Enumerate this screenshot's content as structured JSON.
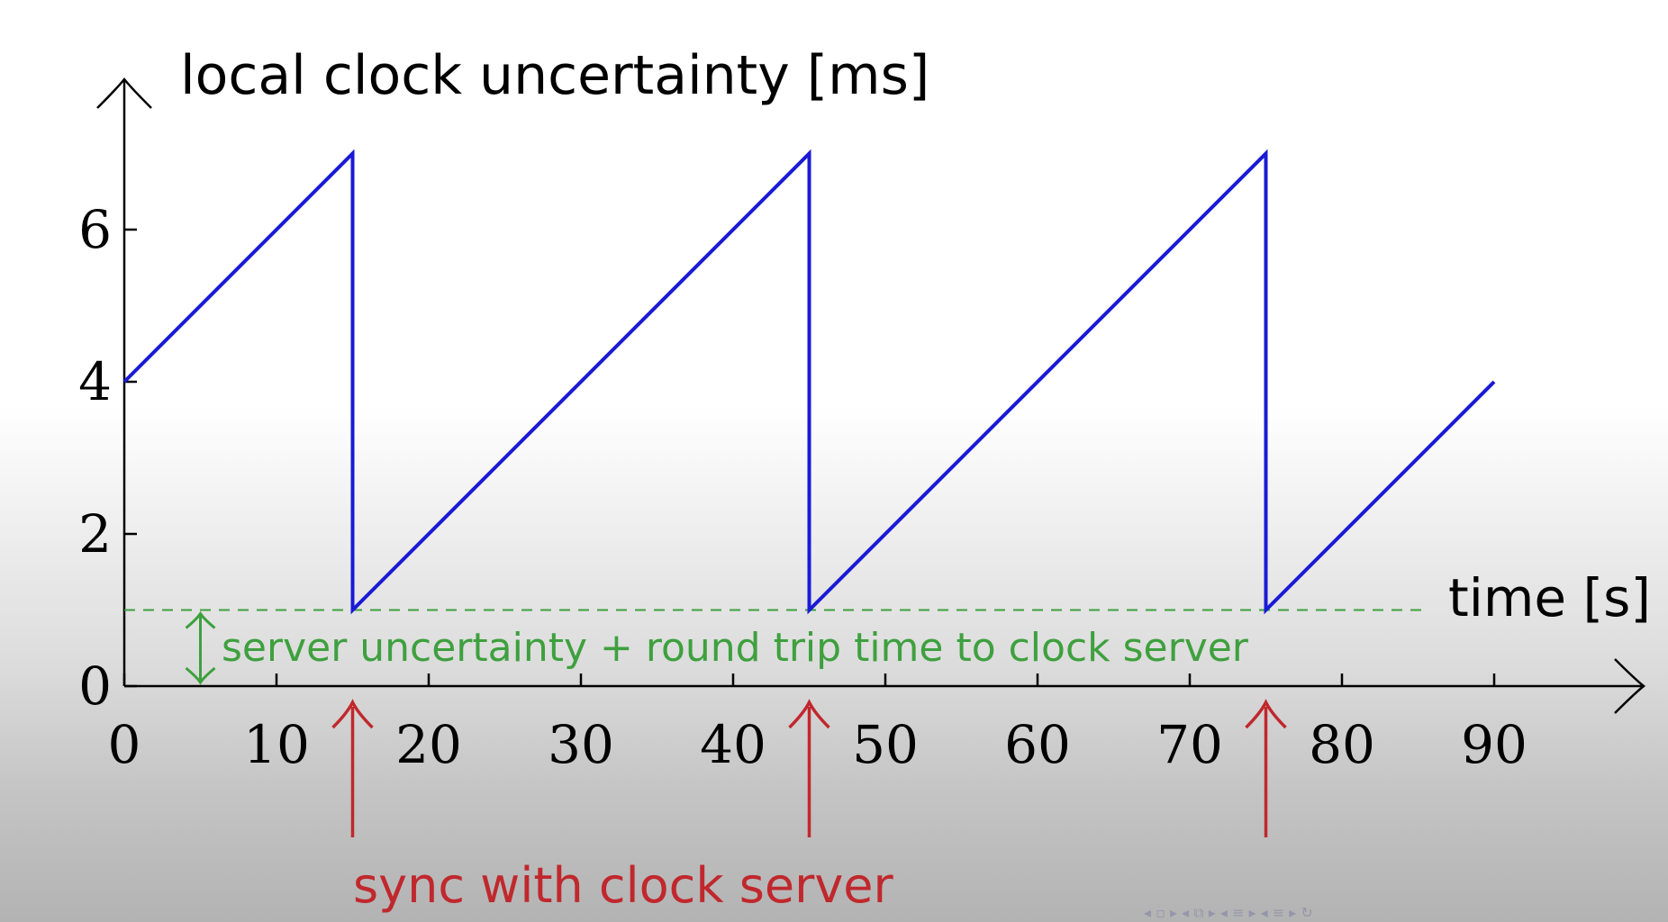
{
  "chart_data": {
    "type": "line",
    "ylabel": "local clock uncertainty [ms]",
    "xlabel": "time [s]",
    "xlim": [
      0,
      100
    ],
    "ylim": [
      0,
      7.5
    ],
    "x_ticks": [
      0,
      10,
      20,
      30,
      40,
      50,
      60,
      70,
      80,
      90
    ],
    "y_ticks": [
      0,
      2,
      4,
      6
    ],
    "grid": false,
    "series": [
      {
        "color": "#1a1ad6",
        "points": [
          [
            0,
            4
          ],
          [
            15,
            7
          ],
          [
            15,
            1
          ],
          [
            45,
            7
          ],
          [
            45,
            1
          ],
          [
            75,
            7
          ],
          [
            75,
            1
          ],
          [
            90,
            4
          ]
        ]
      }
    ],
    "reference_line": {
      "y": 1,
      "color": "#3ea03e",
      "style": "dashed",
      "label": "server uncertainty + round trip time to clock server"
    },
    "sync_events": {
      "x": [
        15,
        45,
        75
      ],
      "color": "#c0282d",
      "label": "sync with clock server"
    }
  },
  "nav_icons": "◂ ▫ ▸ ◂ ⧉ ▸ ◂ ≡ ▸ ◂ ≡ ▸ ↻"
}
